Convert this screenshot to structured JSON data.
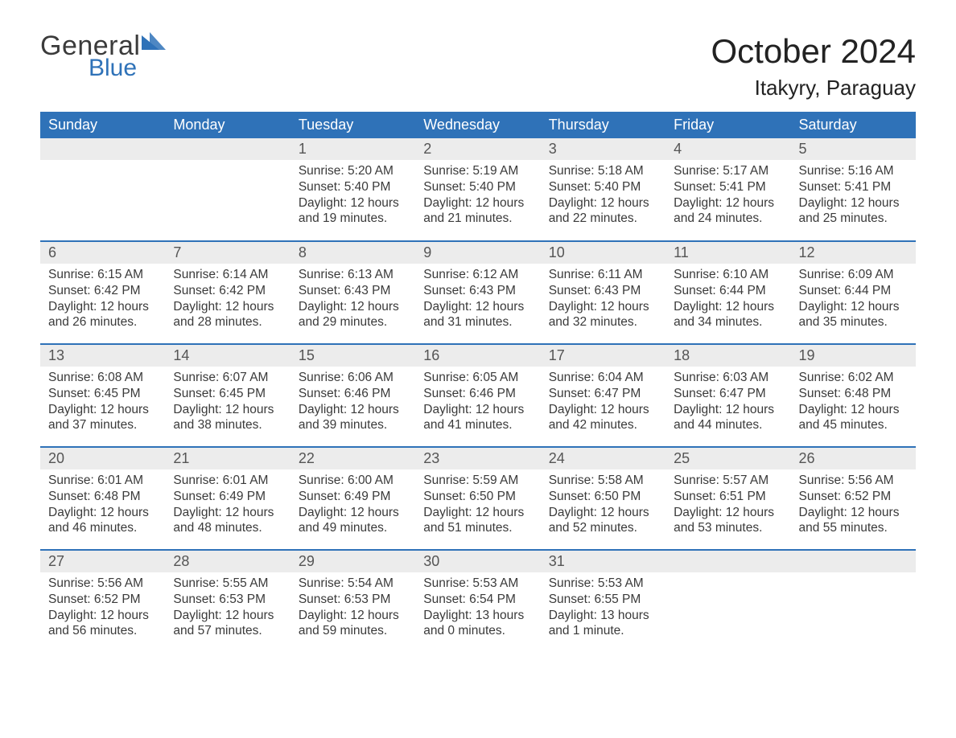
{
  "brand": {
    "general": "General",
    "blue": "Blue",
    "accent_color": "#2f72b8",
    "text_color": "#3a3a3a"
  },
  "title": {
    "month": "October 2024",
    "location": "Itakyry, Paraguay"
  },
  "calendar": {
    "type": "table",
    "background_color": "#ffffff",
    "header_bg": "#2f72b8",
    "header_fg": "#ffffff",
    "daynum_bg": "#ececec",
    "row_border_color": "#2f72b8",
    "font_family": "Arial",
    "header_fontsize": 18,
    "daynum_fontsize": 18,
    "body_fontsize": 15.5,
    "columns": [
      "Sunday",
      "Monday",
      "Tuesday",
      "Wednesday",
      "Thursday",
      "Friday",
      "Saturday"
    ],
    "weeks": [
      [
        null,
        null,
        {
          "n": "1",
          "sunrise": "5:20 AM",
          "sunset": "5:40 PM",
          "daylight": "12 hours and 19 minutes."
        },
        {
          "n": "2",
          "sunrise": "5:19 AM",
          "sunset": "5:40 PM",
          "daylight": "12 hours and 21 minutes."
        },
        {
          "n": "3",
          "sunrise": "5:18 AM",
          "sunset": "5:40 PM",
          "daylight": "12 hours and 22 minutes."
        },
        {
          "n": "4",
          "sunrise": "5:17 AM",
          "sunset": "5:41 PM",
          "daylight": "12 hours and 24 minutes."
        },
        {
          "n": "5",
          "sunrise": "5:16 AM",
          "sunset": "5:41 PM",
          "daylight": "12 hours and 25 minutes."
        }
      ],
      [
        {
          "n": "6",
          "sunrise": "6:15 AM",
          "sunset": "6:42 PM",
          "daylight": "12 hours and 26 minutes."
        },
        {
          "n": "7",
          "sunrise": "6:14 AM",
          "sunset": "6:42 PM",
          "daylight": "12 hours and 28 minutes."
        },
        {
          "n": "8",
          "sunrise": "6:13 AM",
          "sunset": "6:43 PM",
          "daylight": "12 hours and 29 minutes."
        },
        {
          "n": "9",
          "sunrise": "6:12 AM",
          "sunset": "6:43 PM",
          "daylight": "12 hours and 31 minutes."
        },
        {
          "n": "10",
          "sunrise": "6:11 AM",
          "sunset": "6:43 PM",
          "daylight": "12 hours and 32 minutes."
        },
        {
          "n": "11",
          "sunrise": "6:10 AM",
          "sunset": "6:44 PM",
          "daylight": "12 hours and 34 minutes."
        },
        {
          "n": "12",
          "sunrise": "6:09 AM",
          "sunset": "6:44 PM",
          "daylight": "12 hours and 35 minutes."
        }
      ],
      [
        {
          "n": "13",
          "sunrise": "6:08 AM",
          "sunset": "6:45 PM",
          "daylight": "12 hours and 37 minutes."
        },
        {
          "n": "14",
          "sunrise": "6:07 AM",
          "sunset": "6:45 PM",
          "daylight": "12 hours and 38 minutes."
        },
        {
          "n": "15",
          "sunrise": "6:06 AM",
          "sunset": "6:46 PM",
          "daylight": "12 hours and 39 minutes."
        },
        {
          "n": "16",
          "sunrise": "6:05 AM",
          "sunset": "6:46 PM",
          "daylight": "12 hours and 41 minutes."
        },
        {
          "n": "17",
          "sunrise": "6:04 AM",
          "sunset": "6:47 PM",
          "daylight": "12 hours and 42 minutes."
        },
        {
          "n": "18",
          "sunrise": "6:03 AM",
          "sunset": "6:47 PM",
          "daylight": "12 hours and 44 minutes."
        },
        {
          "n": "19",
          "sunrise": "6:02 AM",
          "sunset": "6:48 PM",
          "daylight": "12 hours and 45 minutes."
        }
      ],
      [
        {
          "n": "20",
          "sunrise": "6:01 AM",
          "sunset": "6:48 PM",
          "daylight": "12 hours and 46 minutes."
        },
        {
          "n": "21",
          "sunrise": "6:01 AM",
          "sunset": "6:49 PM",
          "daylight": "12 hours and 48 minutes."
        },
        {
          "n": "22",
          "sunrise": "6:00 AM",
          "sunset": "6:49 PM",
          "daylight": "12 hours and 49 minutes."
        },
        {
          "n": "23",
          "sunrise": "5:59 AM",
          "sunset": "6:50 PM",
          "daylight": "12 hours and 51 minutes."
        },
        {
          "n": "24",
          "sunrise": "5:58 AM",
          "sunset": "6:50 PM",
          "daylight": "12 hours and 52 minutes."
        },
        {
          "n": "25",
          "sunrise": "5:57 AM",
          "sunset": "6:51 PM",
          "daylight": "12 hours and 53 minutes."
        },
        {
          "n": "26",
          "sunrise": "5:56 AM",
          "sunset": "6:52 PM",
          "daylight": "12 hours and 55 minutes."
        }
      ],
      [
        {
          "n": "27",
          "sunrise": "5:56 AM",
          "sunset": "6:52 PM",
          "daylight": "12 hours and 56 minutes."
        },
        {
          "n": "28",
          "sunrise": "5:55 AM",
          "sunset": "6:53 PM",
          "daylight": "12 hours and 57 minutes."
        },
        {
          "n": "29",
          "sunrise": "5:54 AM",
          "sunset": "6:53 PM",
          "daylight": "12 hours and 59 minutes."
        },
        {
          "n": "30",
          "sunrise": "5:53 AM",
          "sunset": "6:54 PM",
          "daylight": "13 hours and 0 minutes."
        },
        {
          "n": "31",
          "sunrise": "5:53 AM",
          "sunset": "6:55 PM",
          "daylight": "13 hours and 1 minute."
        },
        null,
        null
      ]
    ],
    "labels": {
      "sunrise": "Sunrise:",
      "sunset": "Sunset:",
      "daylight": "Daylight:"
    }
  }
}
